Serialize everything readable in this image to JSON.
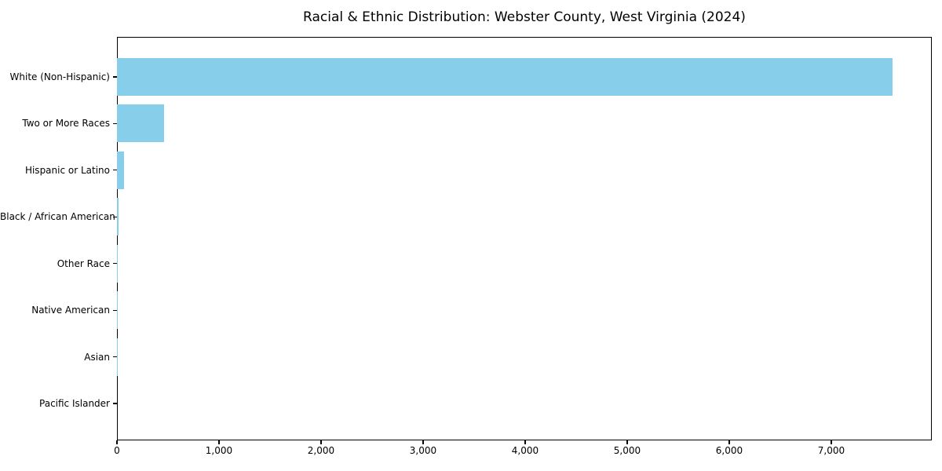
{
  "title": "Racial & Ethnic Distribution: Webster County, West Virginia (2024)",
  "chart_data": {
    "type": "bar",
    "orientation": "horizontal",
    "title": "Racial & Ethnic Distribution: Webster County, West Virginia (2024)",
    "categories": [
      "White (Non-Hispanic)",
      "Two or More Races",
      "Hispanic or Latino",
      "Black / African American",
      "Other Race",
      "Native American",
      "Asian",
      "Pacific Islander"
    ],
    "values": [
      7600,
      460,
      70,
      15,
      10,
      4,
      2,
      0
    ],
    "xlabel": "",
    "ylabel": "",
    "xlim": [
      0,
      7985
    ],
    "x_ticks": [
      0,
      1000,
      2000,
      3000,
      4000,
      5000,
      6000,
      7000
    ],
    "x_tick_labels": [
      "0",
      "1,000",
      "2,000",
      "3,000",
      "4,000",
      "5,000",
      "6,000",
      "7,000"
    ],
    "bar_color": "#87CEEB",
    "axis_color": "#000000",
    "background_color": "#FFFFFF",
    "grid": false,
    "legend": "none",
    "value_labels": false
  }
}
